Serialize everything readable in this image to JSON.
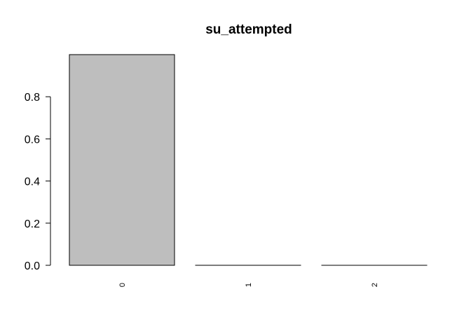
{
  "chart_data": {
    "type": "bar",
    "title": "su_attempted",
    "xlabel": "",
    "ylabel": "",
    "categories": [
      "0",
      "1",
      "2"
    ],
    "values": [
      0.9999,
      0.0001,
      5e-05
    ],
    "ylim": [
      0,
      1
    ],
    "yticks": [
      "0.0",
      "0.2",
      "0.4",
      "0.6",
      "0.8"
    ],
    "bar_color": "#bebebe",
    "bar_border": "#000000",
    "grid": false,
    "legend": "none"
  }
}
